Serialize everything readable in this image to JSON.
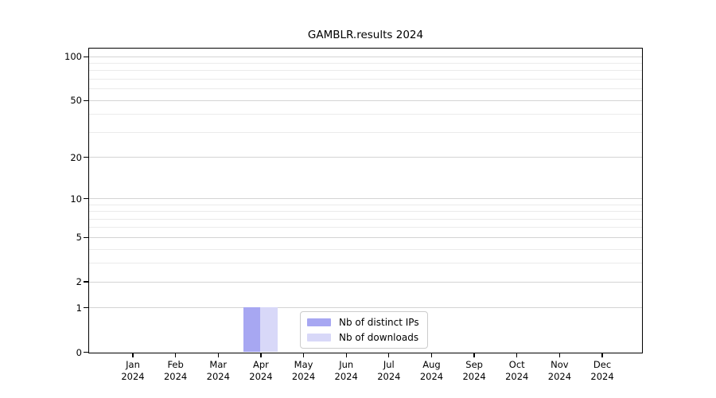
{
  "chart_data": {
    "type": "bar",
    "title": "GAMBLR.results 2024",
    "categories": [
      "Jan 2024",
      "Feb 2024",
      "Mar 2024",
      "Apr 2024",
      "May 2024",
      "Jun 2024",
      "Jul 2024",
      "Aug 2024",
      "Sep 2024",
      "Oct 2024",
      "Nov 2024",
      "Dec 2024"
    ],
    "series": [
      {
        "name": "Nb of distinct IPs",
        "color": "#a7a7f2",
        "values": [
          0,
          0,
          0,
          1,
          0,
          0,
          0,
          0,
          0,
          0,
          0,
          0
        ]
      },
      {
        "name": "Nb of downloads",
        "color": "#d8d8f8",
        "values": [
          0,
          0,
          0,
          1,
          0,
          0,
          0,
          0,
          0,
          0,
          0,
          0
        ]
      }
    ],
    "y_scale": "log1p",
    "ylim": [
      0,
      113
    ],
    "y_major_ticks": [
      0,
      1,
      2,
      5,
      10,
      20,
      50,
      100
    ],
    "y_minor_gridlines": [
      3,
      4,
      6,
      7,
      8,
      9,
      30,
      40,
      60,
      70,
      80,
      90
    ],
    "xlabel": "",
    "ylabel": "",
    "grid": "horizontal",
    "legend_position": "lower center"
  },
  "colors": {
    "axis": "#000000",
    "major_grid": "#d4d4d4",
    "minor_grid": "#ebebeb",
    "legend_border": "#cccccc",
    "background": "#ffffff"
  }
}
